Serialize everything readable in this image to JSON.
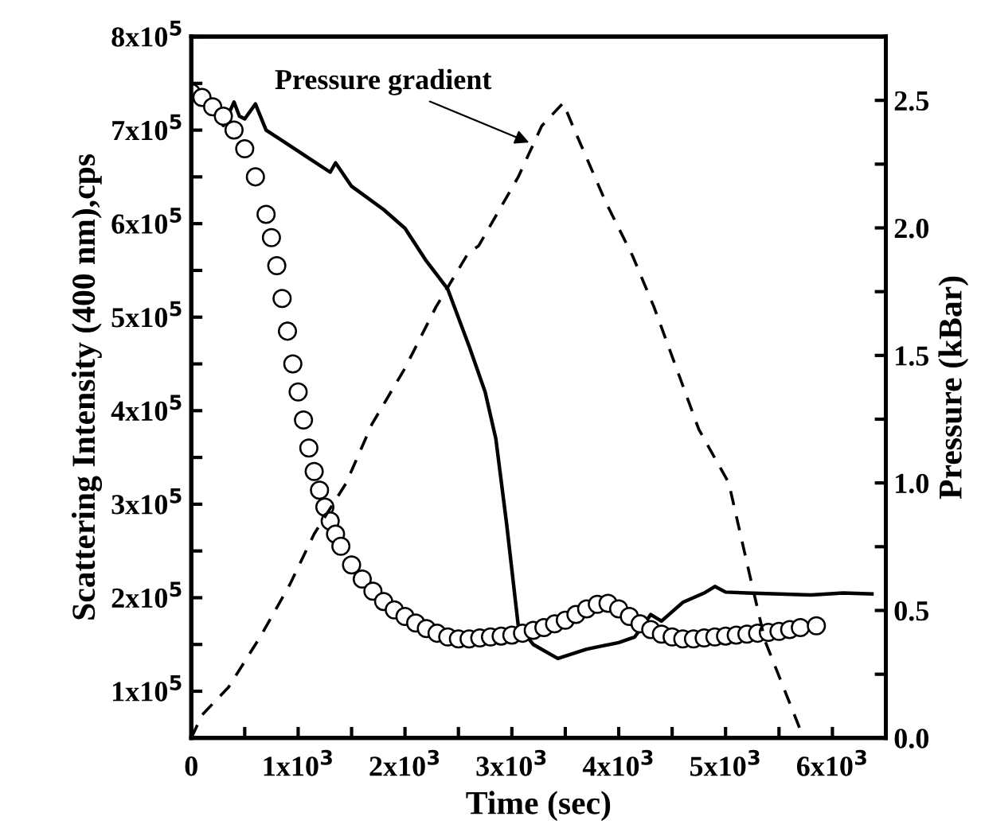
{
  "chart_data": {
    "type": "line",
    "xlabel": "Time (sec)",
    "ylabel": "Scattering Intensity (400 nm),cps",
    "y2label": "Pressure (kBar)",
    "xlim": [
      0,
      6500
    ],
    "xticks": [
      0,
      {
        "value": 500,
        "label": null
      },
      {
        "value": 1000,
        "label": "1x10$^{3}$"
      },
      {
        "value": 1500,
        "label": null
      },
      {
        "value": 2000,
        "label": "2x10$^{3}$"
      },
      {
        "value": 2500,
        "label": null
      },
      {
        "value": 3000,
        "label": "3x10$^{3}$"
      },
      {
        "value": 3500,
        "label": null
      },
      {
        "value": 4000,
        "label": "4x10$^{3}$"
      },
      {
        "value": 4500,
        "label": null
      },
      {
        "value": 5000,
        "label": "5x10$^{3}$"
      },
      {
        "value": 5500,
        "label": null
      },
      {
        "value": 6000,
        "label": "6x10$^{3}$"
      }
    ],
    "ylim": [
      50000,
      800000
    ],
    "yticks": [
      {
        "value": 100000,
        "label": "1x10$^{5}$"
      },
      {
        "value": 150000,
        "label": null
      },
      {
        "value": 200000,
        "label": "2x10$^{5}$"
      },
      {
        "value": 250000,
        "label": null
      },
      {
        "value": 300000,
        "label": "3x10$^{5}$"
      },
      {
        "value": 350000,
        "label": null
      },
      {
        "value": 400000,
        "label": "4x10$^{5}$"
      },
      {
        "value": 450000,
        "label": null
      },
      {
        "value": 500000,
        "label": "5x10$^{5}$"
      },
      {
        "value": 550000,
        "label": null
      },
      {
        "value": 600000,
        "label": "6x10$^{5}$"
      },
      {
        "value": 650000,
        "label": null
      },
      {
        "value": 700000,
        "label": "7x10$^{5}$"
      },
      {
        "value": 750000,
        "label": null
      },
      {
        "value": 800000,
        "label": "8x10$^{5}$"
      }
    ],
    "y2lim": [
      0,
      2.75
    ],
    "y2ticks": [
      {
        "value": 0,
        "label": "0.0"
      },
      {
        "value": 0.25,
        "label": null
      },
      {
        "value": 0.5,
        "label": "0.5"
      },
      {
        "value": 0.75,
        "label": null
      },
      {
        "value": 1.0,
        "label": "1.0"
      },
      {
        "value": 1.25,
        "label": null
      },
      {
        "value": 1.5,
        "label": "1.5"
      },
      {
        "value": 1.75,
        "label": null
      },
      {
        "value": 2.0,
        "label": "2.0"
      },
      {
        "value": 2.25,
        "label": null
      },
      {
        "value": 2.5,
        "label": "2.5"
      }
    ],
    "grid": false,
    "legend": false,
    "annotations": [
      {
        "text": "Pressure gradient",
        "x": 3200,
        "y": 685000
      }
    ],
    "series": [
      {
        "type": "scatter",
        "marker": "circle",
        "color": "#000000",
        "x": [
          0,
          100,
          200,
          300,
          400,
          500,
          600,
          700,
          750,
          800,
          850,
          900,
          950,
          1000,
          1050,
          1100,
          1150,
          1200,
          1250,
          1300,
          1350,
          1400,
          1500,
          1600,
          1700,
          1800,
          1900,
          2000,
          2100,
          2200,
          2300,
          2400,
          2500,
          2600,
          2700,
          2800,
          2900,
          3000,
          3100,
          3200,
          3300,
          3400,
          3500,
          3600,
          3700,
          3800,
          3900,
          4000,
          4100,
          4200,
          4300,
          4400,
          4500,
          4600,
          4700,
          4800,
          4900,
          5000,
          5100,
          5200,
          5300,
          5400,
          5500,
          5600,
          5700,
          5850
        ],
        "values": [
          740000,
          735000,
          725000,
          715000,
          700000,
          680000,
          650000,
          610000,
          585000,
          555000,
          520000,
          485000,
          450000,
          420000,
          390000,
          360000,
          335000,
          315000,
          297000,
          282000,
          268000,
          255000,
          235000,
          220000,
          207000,
          196000,
          187000,
          180000,
          173000,
          167000,
          162000,
          158000,
          156000,
          156000,
          157000,
          158000,
          159000,
          160000,
          162000,
          165000,
          168000,
          172000,
          176000,
          182000,
          188000,
          193000,
          194000,
          188000,
          180000,
          172000,
          166000,
          161000,
          158000,
          156000,
          156000,
          157000,
          158000,
          159000,
          160000,
          161000,
          162000,
          163000,
          164000,
          166000,
          168000,
          170000
        ]
      },
      {
        "line_style": "solid",
        "color": "#000000",
        "x": [
          0,
          150,
          300,
          400,
          450,
          500,
          600,
          700,
          900,
          1100,
          1300,
          1350,
          1500,
          1800,
          2000,
          2200,
          2400,
          2600,
          2750,
          2850,
          2950,
          3060,
          3200,
          3430,
          3700,
          4000,
          4150,
          4300,
          4400,
          4600,
          4800,
          4900,
          5000,
          5200,
          5500,
          5800,
          6100,
          6370
        ],
        "values": [
          750000,
          730000,
          705000,
          730000,
          715000,
          712000,
          728000,
          700000,
          685000,
          670000,
          655000,
          665000,
          640000,
          615000,
          595000,
          560000,
          530000,
          469000,
          420000,
          370000,
          280000,
          170000,
          150000,
          135000,
          145000,
          152000,
          158000,
          182000,
          175000,
          195000,
          205000,
          212000,
          206000,
          205000,
          204000,
          203000,
          205000,
          204000
        ]
      },
      {
        "line_style": "dashed",
        "axis": "y2",
        "color": "#000000",
        "x": [
          0,
          100,
          350,
          650,
          920,
          1150,
          1450,
          1690,
          2000,
          2290,
          2590,
          2690,
          3060,
          3280,
          3480,
          3580,
          3880,
          4130,
          4330,
          4750,
          5030,
          5220,
          5370,
          5730
        ],
        "values": [
          0,
          0.09,
          0.2,
          0.4,
          0.6,
          0.8,
          1.0,
          1.23,
          1.45,
          1.69,
          1.9,
          1.93,
          2.2,
          2.4,
          2.49,
          2.39,
          2.1,
          1.89,
          1.69,
          1.21,
          1.0,
          0.65,
          0.38,
          0
        ]
      }
    ]
  }
}
